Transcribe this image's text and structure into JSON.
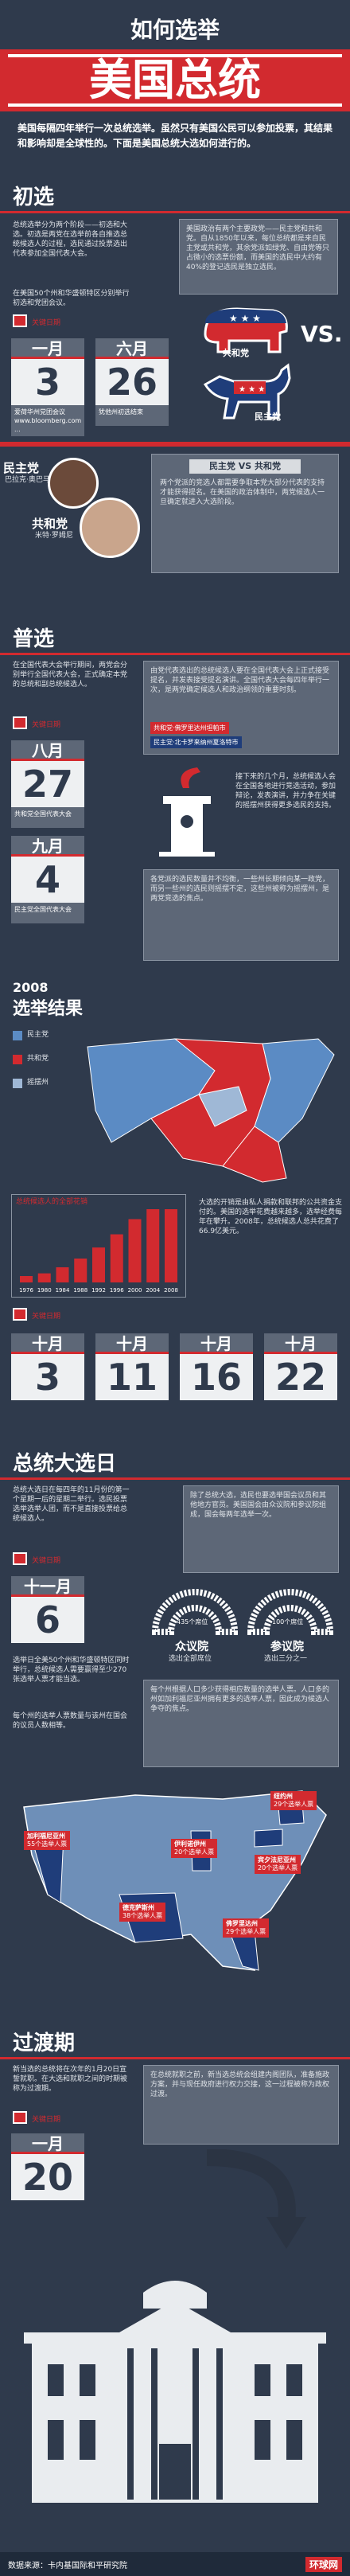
{
  "header": {
    "subtitle": "如何选举",
    "title": "美国总统",
    "intro": "美国每隔四年举行一次总统选举。虽然只有美国公民可以参加投票，其结果和影响却是全球性的。下面是美国总统大选如何进行的。"
  },
  "primaries_intro": {
    "heading": "初选",
    "left_text": "总统选举分为两个阶段——初选和大选。初选是两党在选举前各自推选总统候选人的过程，选民通过投票选出代表参加全国代表大会。",
    "left_note": "在美国50个州和华盛顿特区分别举行初选和党团会议。",
    "calendar_caption": "关键日期",
    "cal1": {
      "month": "一月",
      "day": "3",
      "note": "爱荷华州党团会议 www.bloomberg.com ..."
    },
    "cal2": {
      "month": "六月",
      "day": "26",
      "note": "犹他州初选结束"
    },
    "right_text": "美国政治有两个主要政党——民主党和共和党。自从1850年以来，每位总统都是来自民主党或共和党，其余党派如绿党、自由党等只占微小的选票份额，而美国的选民中大约有40%的登记选民是独立选民。",
    "gop_label": "共和党",
    "dem_label": "民主党",
    "vs": "VS."
  },
  "candidates": {
    "dem_party": "民主党",
    "dem_name": "巴拉克·奥巴马",
    "rep_party": "共和党",
    "rep_name": "米特·罗姆尼",
    "box_title": "民主党 VS 共和党",
    "box_text": "两个党派的竞选人都需要争取本党大部分代表的支持才能获得提名。在美国的政治体制中，两党候选人一旦确定就进入大选阶段。"
  },
  "convention": {
    "heading": "普选",
    "left_text": "在全国代表大会举行期间，两党会分别举行全国代表大会，正式确定本党的总统和副总统候选人。",
    "calendar_caption": "关键日期",
    "cal1": {
      "month": "八月",
      "day": "27",
      "note": "共和党全国代表大会"
    },
    "cal2": {
      "month": "九月",
      "day": "4",
      "note": "民主党全国代表大会"
    },
    "top_text": "由党代表选出的总统候选人要在全国代表大会上正式接受提名，并发表接受提名演讲。全国代表大会每四年举行一次，是两党确定候选人和政治纲领的重要时刻。",
    "badge1": "共和党·佛罗里达州坦帕市",
    "badge2": "民主党·北卡罗来纳州夏洛特市",
    "mid_text": "接下来的几个月，总统候选人会在全国各地进行竞选活动，参加辩论，发表演讲，并力争在关键的摇摆州获得更多选民的支持。",
    "bottom_text": "各党派的选民数量并不均衡，一些州长期倾向某一政党，而另一些州的选民则摇摆不定，这些州被称为摇摆州，是两党竞选的焦点。"
  },
  "results_2008": {
    "year": "2008",
    "heading": "选举结果",
    "legend_dem": "民主党",
    "legend_rep": "共和党",
    "legend_swing": "摇摆州",
    "chart_title": "总统候选人的全部花销",
    "chart_text": "大选的开销是由私人捐款和联邦的公共资金支付的。美国的选举花费越来越多，选举经费每年在攀升。2008年，总统候选人总共花费了66.9亿美元。",
    "chart_years": [
      "1976",
      "1980",
      "1984",
      "1988",
      "1992",
      "1996",
      "2000",
      "2004",
      "2008"
    ],
    "calendar_caption": "关键日期",
    "debates": [
      {
        "month": "十月",
        "day": "3"
      },
      {
        "month": "十月",
        "day": "11"
      },
      {
        "month": "十月",
        "day": "16"
      },
      {
        "month": "十月",
        "day": "22"
      }
    ]
  },
  "election_day": {
    "heading": "总统大选日",
    "left_text": "总统大选日在每四年的11月份的第一个星期一后的星期二举行。选民投票选举选举人团，而不是直接投票给总统候选人。",
    "calendar_caption": "关键日期",
    "cal": {
      "month": "十一月",
      "day": "6"
    },
    "left_note": "选举日全美50个州和华盛顿特区同时举行，总统候选人需要赢得至少270张选举人票才能当选。",
    "left_note2": "每个州的选举人票数量与该州在国会的议员人数相等。",
    "top_text": "除了总统大选，选民也要选举国会议员和其他地方官员。美国国会由众议院和参议院组成，国会每两年选举一次。",
    "house_label": "众议院",
    "house_note": "选出全部席位",
    "house_seats": "435个席位",
    "senate_label": "参议院",
    "senate_note": "选出三分之一",
    "senate_seats": "100个席位",
    "map_text": "每个州根据人口多少获得相应数量的选举人票。人口多的州如加利福尼亚州拥有更多的选举人票，因此成为候选人争夺的焦点。",
    "states": [
      {
        "name": "加利福尼亚州",
        "votes": "55个选举人票"
      },
      {
        "name": "德克萨斯州",
        "votes": "38个选举人票"
      },
      {
        "name": "佛罗里达州",
        "votes": "29个选举人票"
      },
      {
        "name": "伊利诺伊州",
        "votes": "20个选举人票"
      },
      {
        "name": "纽约州",
        "votes": "29个选举人票"
      },
      {
        "name": "宾夕法尼亚州",
        "votes": "20个选举人票"
      }
    ]
  },
  "transition": {
    "heading": "过渡期",
    "left_text": "新当选的总统将在次年的1月20日宣誓就职。在大选和就职之间的时期被称为过渡期。",
    "calendar_caption": "关键日期",
    "cal": {
      "month": "一月",
      "day": "20"
    },
    "right_text": "在总统就职之前，新当选总统会组建内阁团队，准备施政方案，并与现任政府进行权力交接，这一过程被称为政权过渡。"
  },
  "footer": {
    "source": "数据来源：卡内基国际和平研究院",
    "logo": "环球网"
  }
}
